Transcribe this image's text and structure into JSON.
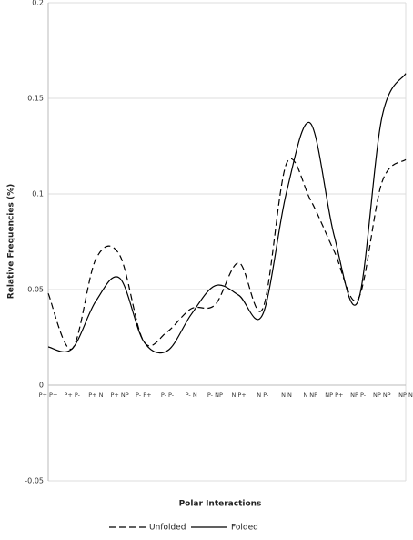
{
  "chart_data": {
    "type": "line",
    "x_label": "Polar Interactions",
    "y_label": "Relative Frequencies (%)",
    "categories": [
      "P+ P+",
      "P+ P-",
      "P+ N",
      "P+ NP",
      "P- P+",
      "P- P-",
      "P- N",
      "P- NP",
      "N P+",
      "N P-",
      "N N",
      "N NP",
      "NP P+",
      "NP P-",
      "NP NP",
      "NP N"
    ],
    "series": [
      {
        "name": "Unfolded",
        "color": "#000000",
        "dash": true,
        "values": [
          0.048,
          0.019,
          0.066,
          0.068,
          0.023,
          0.028,
          0.04,
          0.042,
          0.064,
          0.04,
          0.116,
          0.097,
          0.07,
          0.045,
          0.106,
          0.118
        ]
      },
      {
        "name": "Folded",
        "color": "#000000",
        "dash": false,
        "values": [
          0.02,
          0.019,
          0.044,
          0.056,
          0.023,
          0.018,
          0.037,
          0.052,
          0.047,
          0.037,
          0.101,
          0.137,
          0.078,
          0.044,
          0.14,
          0.163
        ]
      }
    ],
    "ylim": [
      -0.05,
      0.2
    ],
    "yticks": [
      -0.05,
      0,
      0.05,
      0.1,
      0.15,
      0.2
    ],
    "grid": true
  }
}
